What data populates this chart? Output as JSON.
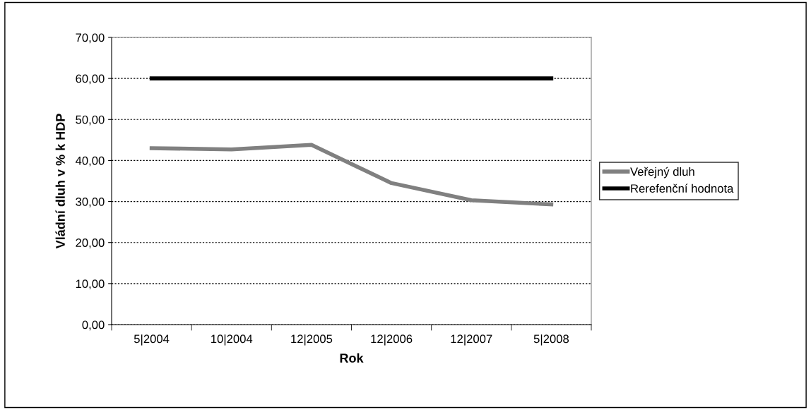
{
  "chart_data": {
    "type": "line",
    "xlabel": "Rok",
    "ylabel": "Vládní dluh v % k HDP",
    "categories": [
      "5|2004",
      "10|2004",
      "12|2005",
      "12|2006",
      "12|2007",
      "5|2008"
    ],
    "series": [
      {
        "name": "Veřejný dluh",
        "color": "#808080",
        "values": [
          43.0,
          42.7,
          43.8,
          34.5,
          30.3,
          29.3
        ]
      },
      {
        "name": "Rerefenční hodnota",
        "color": "#000000",
        "values": [
          60,
          60,
          60,
          60,
          60,
          60
        ]
      }
    ],
    "ylim": [
      0,
      70
    ],
    "yticks": [
      {
        "value": 0,
        "label": "0,00"
      },
      {
        "value": 10,
        "label": "10,00"
      },
      {
        "value": 20,
        "label": "20,00"
      },
      {
        "value": 30,
        "label": "30,00"
      },
      {
        "value": 40,
        "label": "40,00"
      },
      {
        "value": 50,
        "label": "50,00"
      },
      {
        "value": 60,
        "label": "60,00"
      },
      {
        "value": 70,
        "label": "70,00"
      }
    ],
    "grid": "y",
    "legend": "right",
    "marker": "none",
    "line_style": "solid"
  }
}
